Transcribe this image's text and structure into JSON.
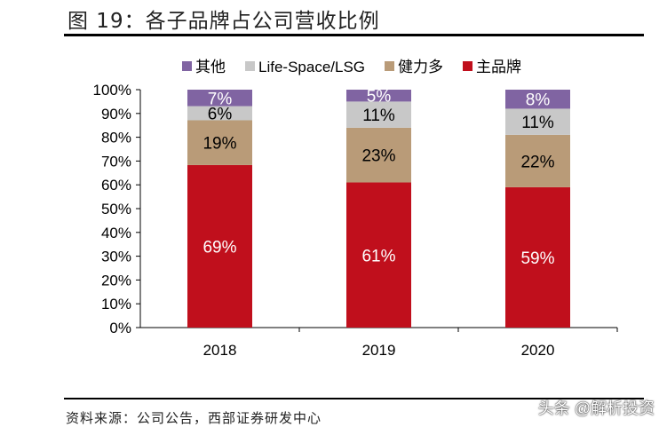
{
  "title": "图 19：各子品牌占公司营收比例",
  "source": "资料来源：公司公告，西部证券研发中心",
  "watermark": "头条 @解析投资",
  "chart_data": {
    "type": "bar",
    "stacked": true,
    "categories": [
      "2018",
      "2019",
      "2020"
    ],
    "series": [
      {
        "name": "主品牌",
        "values": [
          69,
          61,
          59
        ],
        "color": "#C00F1C",
        "label_color": "#ffffff"
      },
      {
        "name": "健力多",
        "values": [
          19,
          23,
          22
        ],
        "color": "#B99B78",
        "label_color": "#000000"
      },
      {
        "name": "Life-Space/LSG",
        "values": [
          6,
          11,
          11
        ],
        "color": "#C8C8C8",
        "label_color": "#000000"
      },
      {
        "name": "其他",
        "values": [
          7,
          5,
          8
        ],
        "color": "#8064A2",
        "label_color": "#ffffff"
      }
    ],
    "legend_order": [
      "其他",
      "Life-Space/LSG",
      "健力多",
      "主品牌"
    ],
    "legend_position": "top",
    "ylim": [
      0,
      100
    ],
    "yticks": [
      "0%",
      "10%",
      "20%",
      "30%",
      "40%",
      "50%",
      "60%",
      "70%",
      "80%",
      "90%",
      "100%"
    ],
    "grid": false
  }
}
